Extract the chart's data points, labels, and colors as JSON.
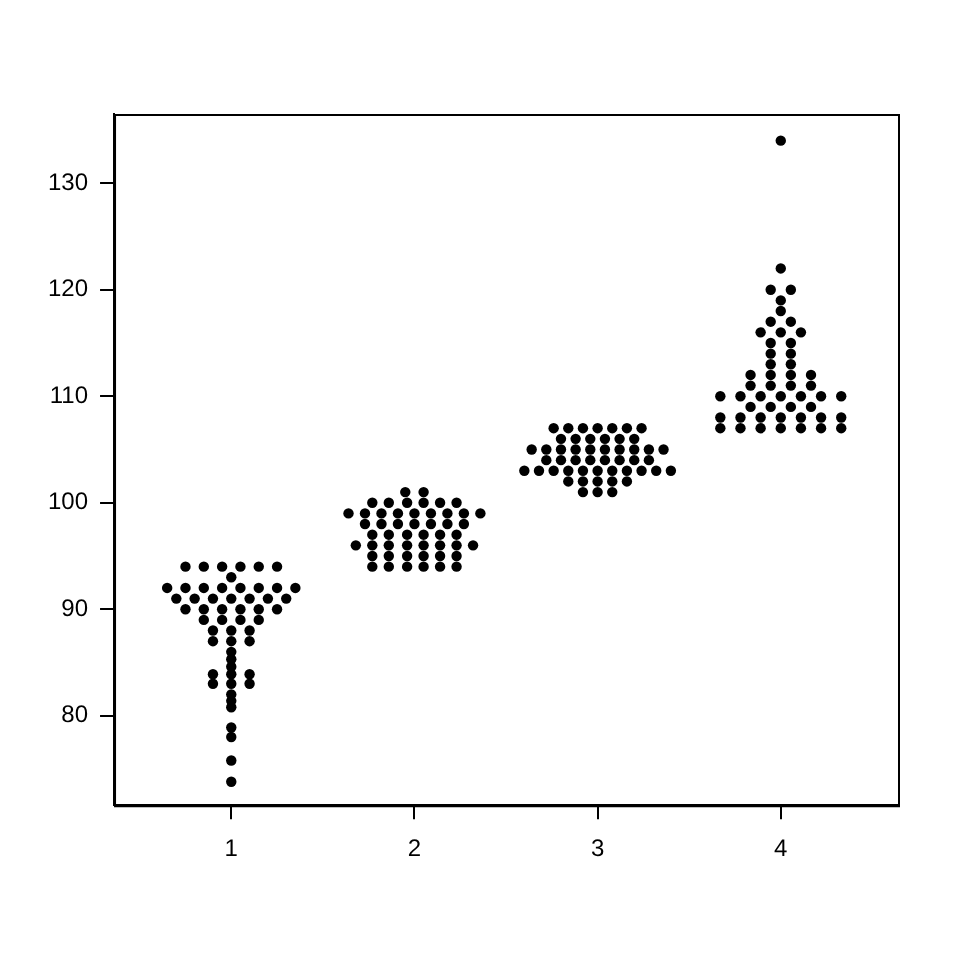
{
  "chart_data": {
    "type": "scatter",
    "marker": "circle",
    "grid": false,
    "legend": false,
    "xlim": [
      0.36,
      4.64
    ],
    "ylim": [
      71.6,
      136.5
    ],
    "xticks": [
      1,
      2,
      3,
      4
    ],
    "yticks": [
      80,
      90,
      100,
      110,
      120,
      130
    ],
    "series": [
      {
        "color": "#000000",
        "x": [
          0.75,
          0.85,
          0.95,
          1.05,
          1.15,
          1.25,
          1.0,
          0.65,
          0.75,
          0.85,
          0.95,
          1.05,
          1.15,
          1.25,
          1.35,
          0.7,
          0.8,
          0.9,
          1.0,
          1.1,
          1.2,
          1.3,
          0.75,
          0.85,
          0.95,
          1.05,
          1.15,
          1.25,
          0.85,
          0.95,
          1.05,
          1.15,
          0.9,
          1.0,
          1.1,
          0.9,
          1.0,
          1.1,
          1.0,
          1.0,
          1.0,
          0.9,
          1.0,
          1.1,
          0.9,
          1.0,
          1.1,
          1.0,
          1.0,
          1.0,
          1.0,
          1.0,
          1.0,
          1.0,
          1.95,
          2.05,
          1.77,
          1.86,
          1.96,
          2.05,
          2.14,
          2.23,
          1.64,
          1.73,
          1.82,
          1.91,
          2.0,
          2.09,
          2.18,
          2.27,
          2.36,
          1.73,
          1.82,
          1.91,
          2.0,
          2.09,
          2.18,
          2.27,
          1.77,
          1.86,
          1.96,
          2.05,
          2.14,
          2.23,
          1.68,
          1.77,
          1.86,
          1.96,
          2.05,
          2.14,
          2.23,
          2.32,
          1.77,
          1.86,
          1.96,
          2.05,
          2.14,
          2.23,
          1.77,
          1.86,
          1.96,
          2.05,
          2.14,
          2.23,
          2.76,
          2.84,
          2.92,
          3.0,
          3.08,
          3.16,
          3.24,
          2.8,
          2.88,
          2.96,
          3.04,
          3.12,
          3.2,
          2.64,
          2.72,
          2.8,
          2.88,
          2.96,
          3.04,
          3.12,
          3.2,
          3.28,
          3.36,
          2.72,
          2.8,
          2.88,
          2.96,
          3.04,
          3.12,
          3.2,
          3.28,
          2.6,
          2.68,
          2.76,
          2.84,
          2.92,
          3.0,
          3.08,
          3.16,
          3.24,
          3.32,
          3.4,
          2.84,
          2.92,
          3.0,
          3.08,
          3.16,
          2.92,
          3.0,
          3.08,
          4.0,
          4.0,
          3.945,
          4.055,
          4.0,
          4.0,
          3.945,
          4.055,
          3.89,
          4.0,
          4.11,
          3.945,
          4.055,
          3.945,
          4.055,
          3.945,
          4.055,
          3.835,
          3.945,
          4.055,
          4.165,
          3.835,
          3.945,
          4.055,
          4.165,
          3.67,
          3.78,
          3.89,
          4.0,
          4.11,
          4.22,
          4.33,
          3.835,
          3.945,
          4.055,
          4.165,
          3.67,
          3.78,
          3.89,
          4.0,
          4.11,
          4.22,
          4.33,
          3.67,
          3.78,
          3.89,
          4.0,
          4.11,
          4.22,
          4.33
        ],
        "values": [
          94,
          94,
          94,
          94,
          94,
          94,
          93,
          92,
          92,
          92,
          92,
          92,
          92,
          92,
          92,
          91,
          91,
          91,
          91,
          91,
          91,
          91,
          90,
          90,
          90,
          90,
          90,
          90,
          89,
          89,
          89,
          89,
          88,
          88,
          88,
          87,
          87,
          87,
          86,
          85.3,
          84.6,
          83.9,
          83.9,
          83.9,
          83,
          83,
          83,
          82,
          81.4,
          80.8,
          78.9,
          78,
          75.8,
          73.8,
          101,
          101,
          100,
          100,
          100,
          100,
          100,
          100,
          99,
          99,
          99,
          99,
          99,
          99,
          99,
          99,
          99,
          98,
          98,
          98,
          98,
          98,
          98,
          98,
          97,
          97,
          97,
          97,
          97,
          97,
          96,
          96,
          96,
          96,
          96,
          96,
          96,
          96,
          95,
          95,
          95,
          95,
          95,
          95,
          94,
          94,
          94,
          94,
          94,
          94,
          107,
          107,
          107,
          107,
          107,
          107,
          107,
          106,
          106,
          106,
          106,
          106,
          106,
          105,
          105,
          105,
          105,
          105,
          105,
          105,
          105,
          105,
          105,
          104,
          104,
          104,
          104,
          104,
          104,
          104,
          104,
          103,
          103,
          103,
          103,
          103,
          103,
          103,
          103,
          103,
          103,
          103,
          102,
          102,
          102,
          102,
          102,
          101,
          101,
          101,
          134,
          122,
          120,
          120,
          119,
          118,
          117,
          117,
          116,
          116,
          116,
          115,
          115,
          114,
          114,
          113,
          113,
          112,
          112,
          112,
          112,
          111,
          111,
          111,
          111,
          110,
          110,
          110,
          110,
          110,
          110,
          110,
          109,
          109,
          109,
          109,
          108,
          108,
          108,
          108,
          108,
          108,
          108,
          107,
          107,
          107,
          107,
          107,
          107,
          107
        ]
      }
    ]
  }
}
